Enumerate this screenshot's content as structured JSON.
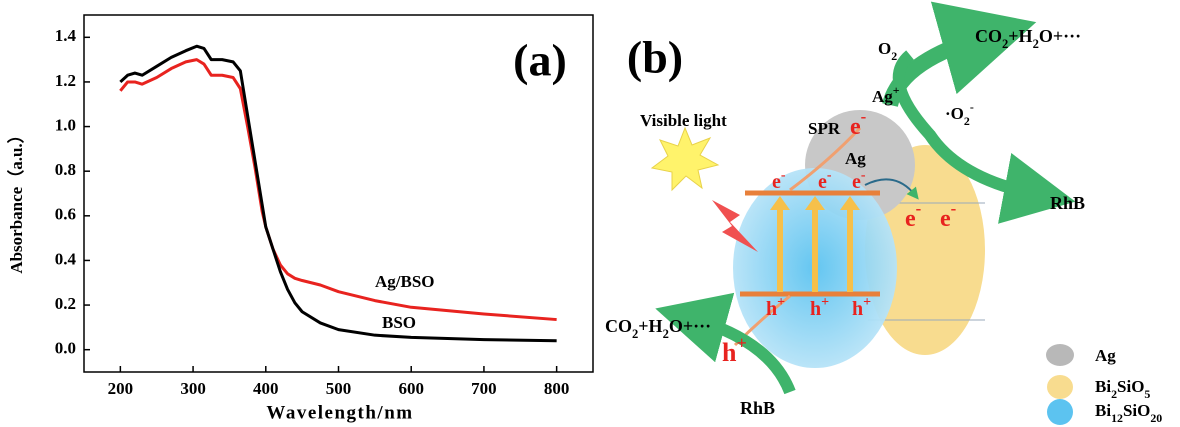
{
  "chart_data": {
    "type": "line",
    "panel_label": "(a)",
    "x_label": "Wavelength/nm",
    "y_label": "Absorbance（a.u.）",
    "x": [
      200,
      210,
      220,
      230,
      250,
      270,
      290,
      305,
      315,
      325,
      340,
      355,
      365,
      375,
      385,
      395,
      400,
      410,
      420,
      430,
      440,
      450,
      475,
      500,
      550,
      600,
      700,
      800
    ],
    "series": [
      {
        "name": "Ag/BSO",
        "color": "#e8231f",
        "values": [
          1.16,
          1.2,
          1.2,
          1.19,
          1.22,
          1.26,
          1.29,
          1.3,
          1.28,
          1.23,
          1.23,
          1.22,
          1.17,
          1.0,
          0.82,
          0.62,
          0.55,
          0.45,
          0.38,
          0.34,
          0.32,
          0.31,
          0.29,
          0.26,
          0.22,
          0.19,
          0.16,
          0.135
        ]
      },
      {
        "name": "BSO",
        "color": "#000000",
        "values": [
          1.2,
          1.23,
          1.24,
          1.23,
          1.27,
          1.31,
          1.34,
          1.36,
          1.35,
          1.3,
          1.3,
          1.29,
          1.25,
          1.05,
          0.85,
          0.65,
          0.55,
          0.45,
          0.35,
          0.27,
          0.21,
          0.17,
          0.12,
          0.09,
          0.065,
          0.055,
          0.045,
          0.04
        ]
      }
    ],
    "xlim": [
      150,
      850
    ],
    "xticks": [
      200,
      300,
      400,
      500,
      600,
      700,
      800
    ],
    "ylim": [
      -0.1,
      1.5
    ],
    "yticks": [
      {
        "value": 0,
        "label": "0.0"
      },
      0.2,
      0.4,
      0.6,
      0.8,
      {
        "value": 1,
        "label": "1.0"
      },
      1.2,
      1.4
    ],
    "grid": false
  },
  "diagram": {
    "panel_label": "(b)",
    "visible_light": "Visible light",
    "spr": "SPR",
    "ag_particle": "Ag",
    "ag_ion": [
      "Ag",
      "+"
    ],
    "oxygen": [
      "O",
      "2"
    ],
    "superoxide": [
      "·O",
      "2",
      "-"
    ],
    "products_top": [
      "CO",
      "2",
      "+H",
      "2",
      "O+···"
    ],
    "rhb_right": "RhB",
    "electron_spr": [
      "e",
      "-"
    ],
    "electrons_cb": [
      [
        "e",
        "-"
      ],
      [
        "e",
        "-"
      ],
      [
        "e",
        "-"
      ]
    ],
    "electrons_bi2sio5": [
      [
        "e",
        "-"
      ],
      [
        "e",
        "-"
      ]
    ],
    "holes_vb": [
      [
        "h",
        "+"
      ],
      [
        "h",
        "+"
      ],
      [
        "h",
        "+"
      ]
    ],
    "hole_out": [
      "h",
      "+"
    ],
    "products_left": [
      "CO",
      "2",
      "+H",
      "2",
      "O+···"
    ],
    "rhb_bottom": "RhB",
    "legend": [
      [
        "Ag"
      ],
      [
        "Bi",
        "2",
        "SiO",
        "5"
      ],
      [
        "Bi",
        "12",
        "SiO",
        "20"
      ]
    ]
  }
}
